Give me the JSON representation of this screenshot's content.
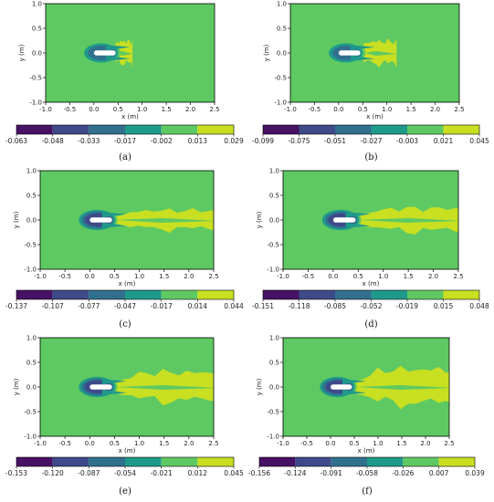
{
  "figure": {
    "panel_labels": [
      "(a)",
      "(b)",
      "(c)",
      "(d)",
      "(e)",
      "(f)"
    ]
  },
  "colors": {
    "levels": [
      "#471164",
      "#3e4a89",
      "#30708e",
      "#1f9a8a",
      "#5ec962",
      "#c8df22"
    ],
    "background": "#5ec962",
    "body": "#ffffff"
  },
  "chart_data": [
    {
      "type": "heatmap",
      "panel": "(a)",
      "xlabel": "x (m)",
      "ylabel": "y (m)",
      "xlim": [
        -1.0,
        2.5
      ],
      "ylim": [
        -1.0,
        1.0
      ],
      "xticks": [
        "-1.0",
        "-0.5",
        "0.0",
        "0.5",
        "1.0",
        "1.5",
        "2.0",
        "2.5"
      ],
      "yticks": [
        "-1.0",
        "-0.5",
        "0.0",
        "0.5",
        "1.0"
      ],
      "colorbar_ticks": [
        "-0.063",
        "-0.048",
        "-0.033",
        "-0.017",
        "-0.002",
        "0.013",
        "0.029"
      ],
      "wake_length": 0.45,
      "wake_halfwidth": 0.18,
      "bow_layers": 3
    },
    {
      "type": "heatmap",
      "panel": "(b)",
      "xlabel": "x (m)",
      "ylabel": "y (m)",
      "xlim": [
        -1.0,
        2.5
      ],
      "ylim": [
        -1.0,
        1.0
      ],
      "xticks": [
        "-1.0",
        "-0.5",
        "0.0",
        "0.5",
        "1.0",
        "1.5",
        "2.0",
        "2.5"
      ],
      "yticks": [
        "-1.0",
        "-0.5",
        "0.0",
        "0.5",
        "1.0"
      ],
      "colorbar_ticks": [
        "-0.099",
        "-0.075",
        "-0.051",
        "-0.027",
        "-0.003",
        "0.021",
        "0.045"
      ],
      "wake_length": 0.85,
      "wake_halfwidth": 0.18,
      "bow_layers": 3
    },
    {
      "type": "heatmap",
      "panel": "(c)",
      "xlabel": "x (m)",
      "ylabel": "y (m)",
      "xlim": [
        -1.0,
        2.5
      ],
      "ylim": [
        -1.0,
        1.0
      ],
      "xticks": [
        "-1.0",
        "-0.5",
        "0.0",
        "0.5",
        "1.0",
        "1.5",
        "2.0",
        "2.5"
      ],
      "yticks": [
        "-1.0",
        "-0.5",
        "0.0",
        "0.5",
        "1.0"
      ],
      "colorbar_ticks": [
        "-0.137",
        "-0.107",
        "-0.077",
        "-0.047",
        "-0.017",
        "0.014",
        "0.044"
      ],
      "wake_length": 2.2,
      "wake_halfwidth": 0.14,
      "bow_layers": 4
    },
    {
      "type": "heatmap",
      "panel": "(d)",
      "xlabel": "x (m)",
      "ylabel": "y (m)",
      "xlim": [
        -1.0,
        2.5
      ],
      "ylim": [
        -1.0,
        1.0
      ],
      "xticks": [
        "-1.0",
        "-0.5",
        "0.0",
        "0.5",
        "1.0",
        "1.5",
        "2.0",
        "2.5"
      ],
      "yticks": [
        "-1.0",
        "-0.5",
        "0.0",
        "0.5",
        "1.0"
      ],
      "colorbar_ticks": [
        "-0.151",
        "-0.118",
        "-0.085",
        "-0.052",
        "-0.019",
        "0.015",
        "0.048"
      ],
      "wake_length": 2.5,
      "wake_halfwidth": 0.18,
      "bow_layers": 4
    },
    {
      "type": "heatmap",
      "panel": "(e)",
      "xlabel": "x (m)",
      "ylabel": "y (m)",
      "xlim": [
        -1.0,
        2.5
      ],
      "ylim": [
        -1.0,
        1.0
      ],
      "xticks": [
        "-1.0",
        "-0.5",
        "0.0",
        "0.5",
        "1.0",
        "1.5",
        "2.0",
        "2.5"
      ],
      "yticks": [
        "-1.0",
        "-0.5",
        "0.0",
        "0.5",
        "1.0"
      ],
      "colorbar_ticks": [
        "-0.153",
        "-0.120",
        "-0.087",
        "-0.054",
        "-0.021",
        "0.012",
        "0.045"
      ],
      "wake_length": 2.5,
      "wake_halfwidth": 0.24,
      "bow_layers": 4
    },
    {
      "type": "heatmap",
      "panel": "(f)",
      "xlabel": "x (m)",
      "ylabel": "y (m)",
      "xlim": [
        -1.0,
        2.5
      ],
      "ylim": [
        -1.0,
        1.0
      ],
      "xticks": [
        "-1.0",
        "-0.5",
        "0.0",
        "0.5",
        "1.0",
        "1.5",
        "2.0",
        "2.5"
      ],
      "yticks": [
        "-1.0",
        "-0.5",
        "0.0",
        "0.5",
        "1.0"
      ],
      "colorbar_ticks": [
        "-0.156",
        "-0.124",
        "-0.091",
        "-0.058",
        "-0.026",
        "0.007",
        "0.039"
      ],
      "wake_length": 2.5,
      "wake_halfwidth": 0.3,
      "bow_layers": 4
    }
  ]
}
